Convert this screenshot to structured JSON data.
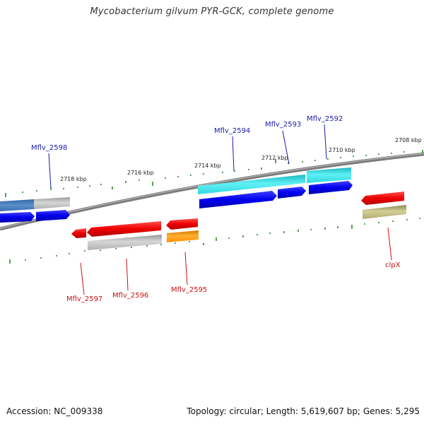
{
  "title": "Mycobacterium gilvum PYR-GCK, complete genome",
  "scale_labels": [
    "2718 kbp",
    "2716 kbp",
    "2714 kbp",
    "2712 kbp",
    "2710 kbp",
    "2708 kbp"
  ],
  "gene_labels_forward": [
    "Mflv_2598",
    "Mflv_2594",
    "Mflv_2593",
    "Mflv_2592"
  ],
  "gene_labels_reverse": [
    "Mflv_2597",
    "Mflv_2596",
    "Mflv_2595",
    "clpX"
  ],
  "footer": {
    "accession": "Accession: NC_009338",
    "summary": "Topology: circular; Length: 5,619,607 bp; Genes: 5,295"
  },
  "colors": {
    "backbone": "#8a8a8a",
    "tick": "#2a8a2a",
    "cds_forward": "#0000ee",
    "cds_reverse": "#ee0000",
    "gray_feature": "#b8b8b8",
    "cyan_feature": "#33e0e8",
    "steelblue_feature": "#4a7fb8",
    "orange_feature": "#ff9900",
    "olive_feature": "#b8b070",
    "label_blue": "#1a1aa8",
    "label_red": "#cc1111"
  }
}
